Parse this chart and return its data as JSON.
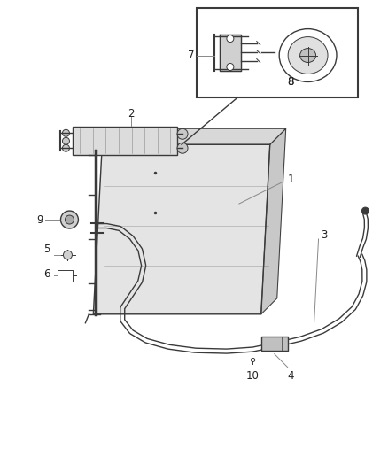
{
  "background_color": "#ffffff",
  "line_color": "#3a3a3a",
  "label_color": "#222222",
  "label_fontsize": 8.5,
  "fig_width": 4.38,
  "fig_height": 5.33,
  "dpi": 100
}
